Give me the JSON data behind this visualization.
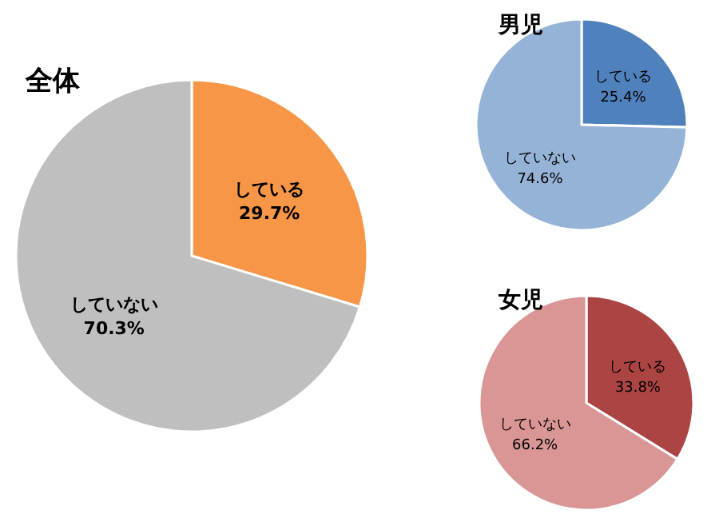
{
  "chart_data": [
    {
      "type": "pie",
      "title": "全体",
      "categories": [
        "している",
        "していない"
      ],
      "values": [
        29.7,
        70.3
      ],
      "colors": [
        "#f79646",
        "#bfbfbf"
      ],
      "value_labels": [
        "29.7%",
        "70.3%"
      ]
    },
    {
      "type": "pie",
      "title": "男児",
      "categories": [
        "している",
        "していない"
      ],
      "values": [
        25.4,
        74.6
      ],
      "colors": [
        "#4f81bd",
        "#95b3d7"
      ],
      "value_labels": [
        "25.4%",
        "74.6%"
      ]
    },
    {
      "type": "pie",
      "title": "女児",
      "categories": [
        "している",
        "していない"
      ],
      "values": [
        33.8,
        66.2
      ],
      "colors": [
        "#ab4442",
        "#d99694"
      ],
      "value_labels": [
        "33.8%",
        "66.2%"
      ]
    }
  ]
}
